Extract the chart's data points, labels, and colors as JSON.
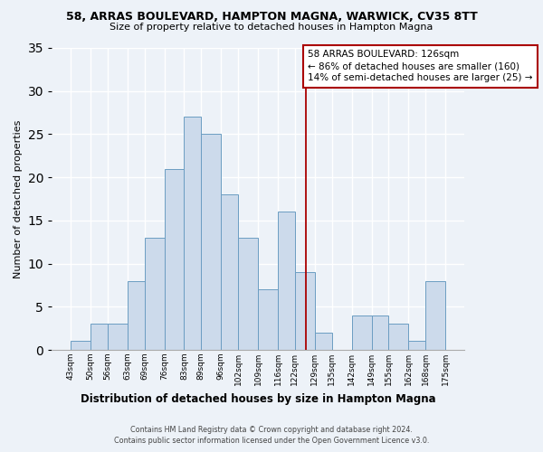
{
  "title1": "58, ARRAS BOULEVARD, HAMPTON MAGNA, WARWICK, CV35 8TT",
  "title2": "Size of property relative to detached houses in Hampton Magna",
  "xlabel": "Distribution of detached houses by size in Hampton Magna",
  "ylabel": "Number of detached properties",
  "bin_labels": [
    "43sqm",
    "50sqm",
    "56sqm",
    "63sqm",
    "69sqm",
    "76sqm",
    "83sqm",
    "89sqm",
    "96sqm",
    "102sqm",
    "109sqm",
    "116sqm",
    "122sqm",
    "129sqm",
    "135sqm",
    "142sqm",
    "149sqm",
    "155sqm",
    "162sqm",
    "168sqm",
    "175sqm"
  ],
  "bin_edges": [
    43,
    50,
    56,
    63,
    69,
    76,
    83,
    89,
    96,
    102,
    109,
    116,
    122,
    129,
    135,
    142,
    149,
    155,
    162,
    168,
    175
  ],
  "bar_heights": [
    1,
    3,
    3,
    8,
    13,
    21,
    27,
    25,
    18,
    13,
    7,
    16,
    9,
    2,
    0,
    4,
    4,
    3,
    1,
    8
  ],
  "bar_color": "#ccdaeb",
  "bar_edgecolor": "#6b9dc2",
  "vline_x": 126,
  "vline_color": "#aa0000",
  "annotation_title": "58 ARRAS BOULEVARD: 126sqm",
  "annotation_line1": "← 86% of detached houses are smaller (160)",
  "annotation_line2": "14% of semi-detached houses are larger (25) →",
  "annotation_box_edgecolor": "#aa0000",
  "ylim": [
    0,
    35
  ],
  "yticks": [
    0,
    5,
    10,
    15,
    20,
    25,
    30,
    35
  ],
  "footnote1": "Contains HM Land Registry data © Crown copyright and database right 2024.",
  "footnote2": "Contains public sector information licensed under the Open Government Licence v3.0.",
  "bg_color": "#edf2f8",
  "grid_color": "#d8e2ef",
  "title1_fontsize": 9,
  "title2_fontsize": 8,
  "ylabel_fontsize": 8,
  "xlabel_fontsize": 8.5,
  "tick_fontsize": 6.5,
  "annot_fontsize": 7.5,
  "footnote_fontsize": 5.8
}
